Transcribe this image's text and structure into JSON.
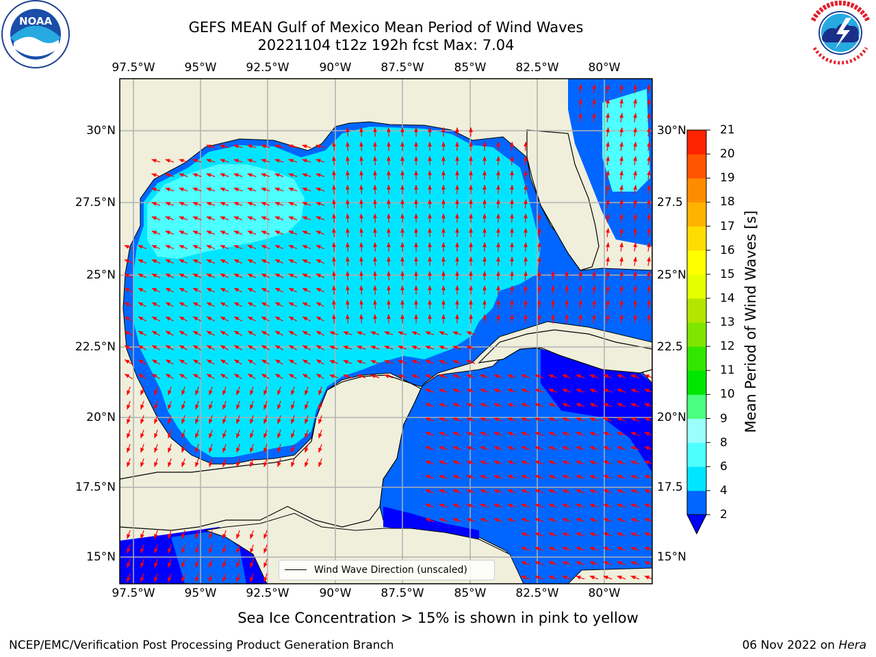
{
  "title_line1": "GEFS MEAN Gulf of Mexico Mean Period of Wind Waves",
  "title_line2": "20221104 t12z 192h fcst   Max: 7.04",
  "lon_ticks": [
    "97.5°W",
    "95°W",
    "92.5°W",
    "90°W",
    "87.5°W",
    "85°W",
    "82.5°W",
    "80°W"
  ],
  "lat_ticks_left": [
    "30°N",
    "27.5°N",
    "25°N",
    "22.5°N",
    "20°N",
    "17.5°N",
    "15°N"
  ],
  "lat_ticks_right": [
    "30°N",
    "27.5",
    "25°N",
    "22.5",
    "20°N",
    "17.5",
    "15°N"
  ],
  "extent": {
    "lon_min": -98,
    "lon_max": -78.2,
    "lat_min": 14.0,
    "lat_max": 31.8
  },
  "colorbar": {
    "title": "Mean Period of Wind Waves [s]",
    "levels": [
      "2",
      "4",
      "6",
      "8",
      "9",
      "10",
      "11",
      "12",
      "13",
      "14",
      "15",
      "16",
      "17",
      "18",
      "19",
      "20",
      "21"
    ],
    "colors": [
      "#0066ff",
      "#00e5ff",
      "#4dffff",
      "#99ffff",
      "#4cff80",
      "#00e600",
      "#33e600",
      "#80e600",
      "#b3e600",
      "#e6ff00",
      "#ffff00",
      "#ffdd00",
      "#ffb300",
      "#ff8c00",
      "#ff5500",
      "#ff2200"
    ],
    "under_color": "#0000ff"
  },
  "legend": {
    "label": "Wind Wave Direction (unscaled)"
  },
  "colors": {
    "land": "#efefdc",
    "sea_deep": "#0066ff",
    "sea_mid": "#00e5ff",
    "sea_light": "#4dffff",
    "sea_low": "#0000ff",
    "arrow": "#ff0000",
    "grid": "#b0b0b0"
  },
  "footer": {
    "note": "Sea Ice Concentration > 15% is shown in pink to yellow",
    "credit": "NCEP/EMC/Verification Post Processing Product Generation Branch",
    "date": "06 Nov 2022 on",
    "host": "Hera"
  },
  "logos": {
    "noaa_text": "NOAA",
    "noaa_ring": "NATIONAL OCEANIC AND ATMOSPHERIC ADMINISTRATION · U.S. DEPARTMENT OF COMMERCE",
    "nws_ring": "NATIONAL WEATHER SERVICE"
  }
}
